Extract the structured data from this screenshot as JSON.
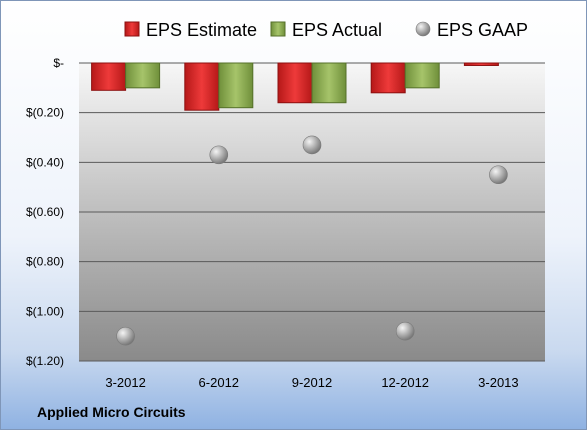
{
  "chart_data": {
    "type": "bar",
    "categories": [
      "3-2012",
      "6-2012",
      "9-2012",
      "12-2012",
      "3-2013"
    ],
    "series": [
      {
        "name": "EPS Estimate",
        "kind": "bar",
        "color": "#d42a2a",
        "values": [
          -0.11,
          -0.19,
          -0.16,
          -0.12,
          -0.01
        ]
      },
      {
        "name": "EPS Actual",
        "kind": "bar",
        "color": "#8eae53",
        "values": [
          -0.1,
          -0.18,
          -0.16,
          -0.1,
          null
        ]
      },
      {
        "name": "EPS GAAP",
        "kind": "scatter",
        "color": "#a8a8a8",
        "values": [
          -1.1,
          -0.37,
          -0.33,
          -1.08,
          -0.45
        ]
      }
    ],
    "yticks": [
      {
        "value": 0,
        "label": "$-"
      },
      {
        "value": -0.2,
        "label": "$(0.20)"
      },
      {
        "value": -0.4,
        "label": "$(0.40)"
      },
      {
        "value": -0.6,
        "label": "$(0.60)"
      },
      {
        "value": -0.8,
        "label": "$(0.80)"
      },
      {
        "value": -1.0,
        "label": "$(1.00)"
      },
      {
        "value": -1.2,
        "label": "$(1.20)"
      }
    ],
    "ylim": [
      -1.2,
      0
    ],
    "legend_position": "top",
    "grid": true,
    "company": "Applied Micro Circuits"
  }
}
